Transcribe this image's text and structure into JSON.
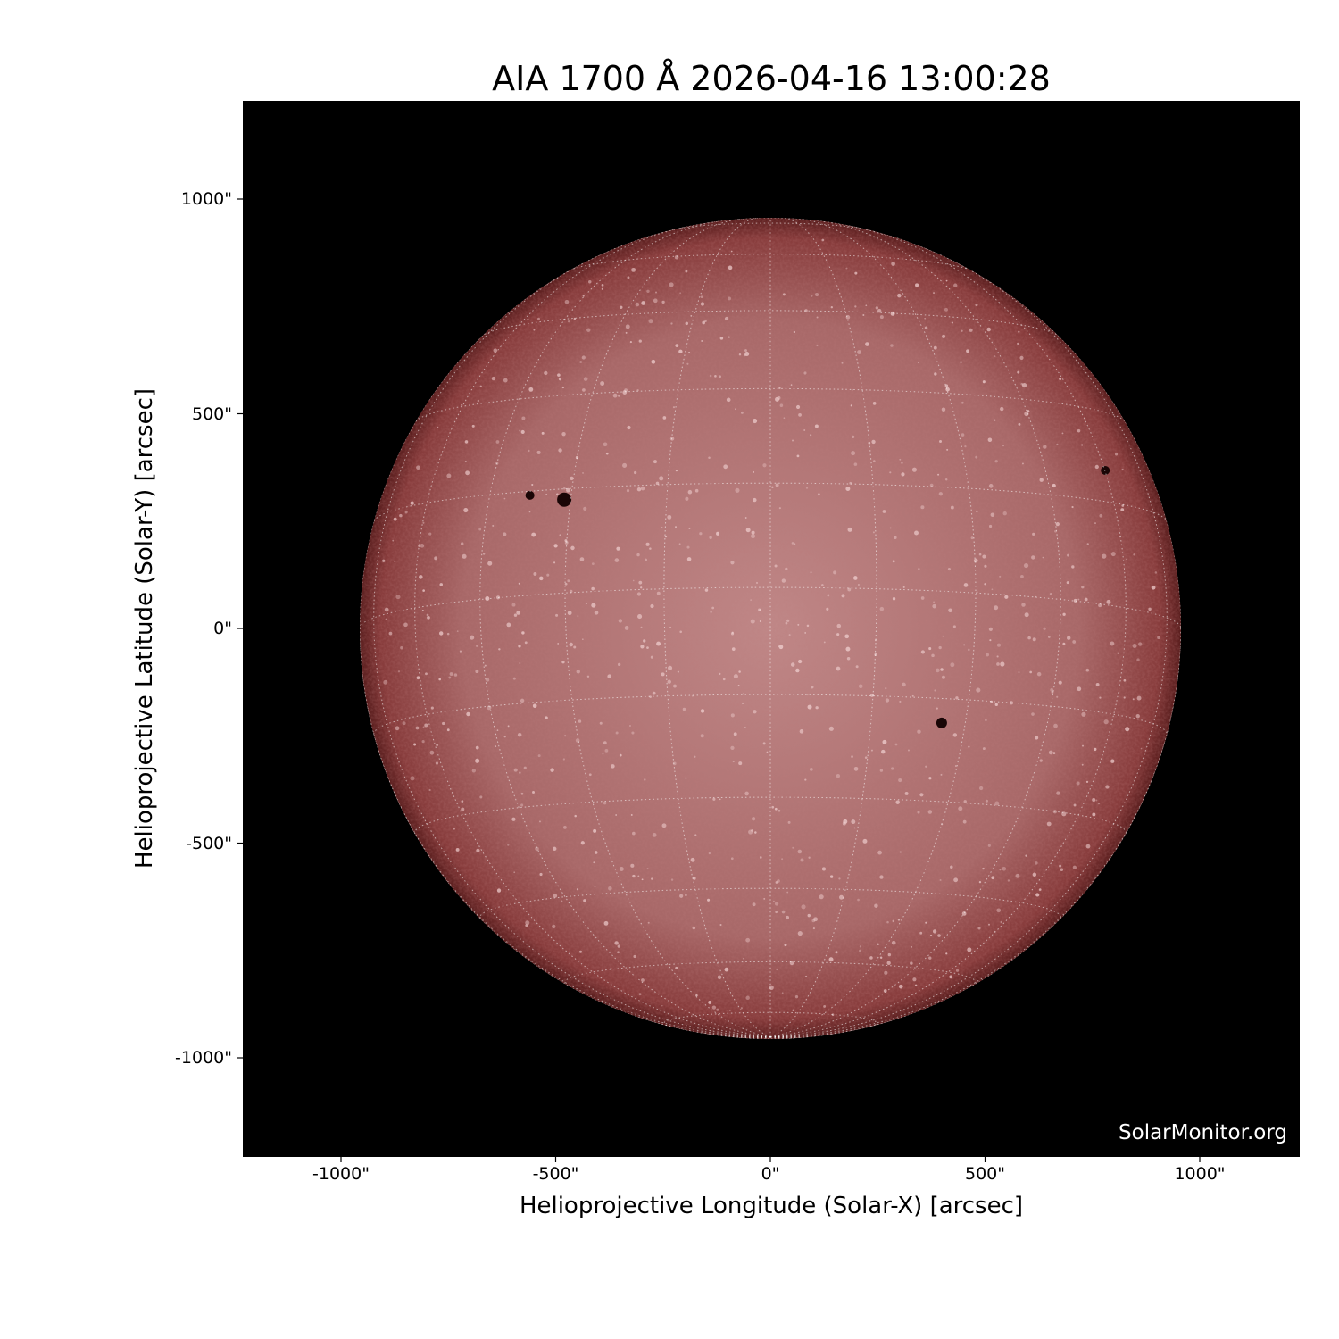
{
  "chart_data": {
    "type": "image",
    "title": "AIA 1700 Å 2026-04-16 13:00:28",
    "xlabel": "Helioprojective Longitude (Solar-X) [arcsec]",
    "ylabel": "Helioprojective Latitude (Solar-Y) [arcsec]",
    "xlim": [
      -1230,
      1230
    ],
    "ylim": [
      -1230,
      1230
    ],
    "xticks": [
      -1000,
      -500,
      0,
      500,
      1000
    ],
    "yticks": [
      -1000,
      -500,
      0,
      500,
      1000
    ],
    "xtick_labels": [
      "-1000\"",
      "-500\"",
      "0\"",
      "500\"",
      "1000\""
    ],
    "ytick_labels": [
      "-1000\"",
      "-500\"",
      "0\"",
      "500\"",
      "1000\""
    ],
    "solar_radius_arcsec": 957,
    "grid": "heliographic, 15° spacing, dotted white",
    "colormap": "sdoaia1700",
    "colors": {
      "background": "#000000",
      "disk_center": "#c89090",
      "disk_limb": "#6a2424"
    },
    "credit": "SolarMonitor.org"
  }
}
